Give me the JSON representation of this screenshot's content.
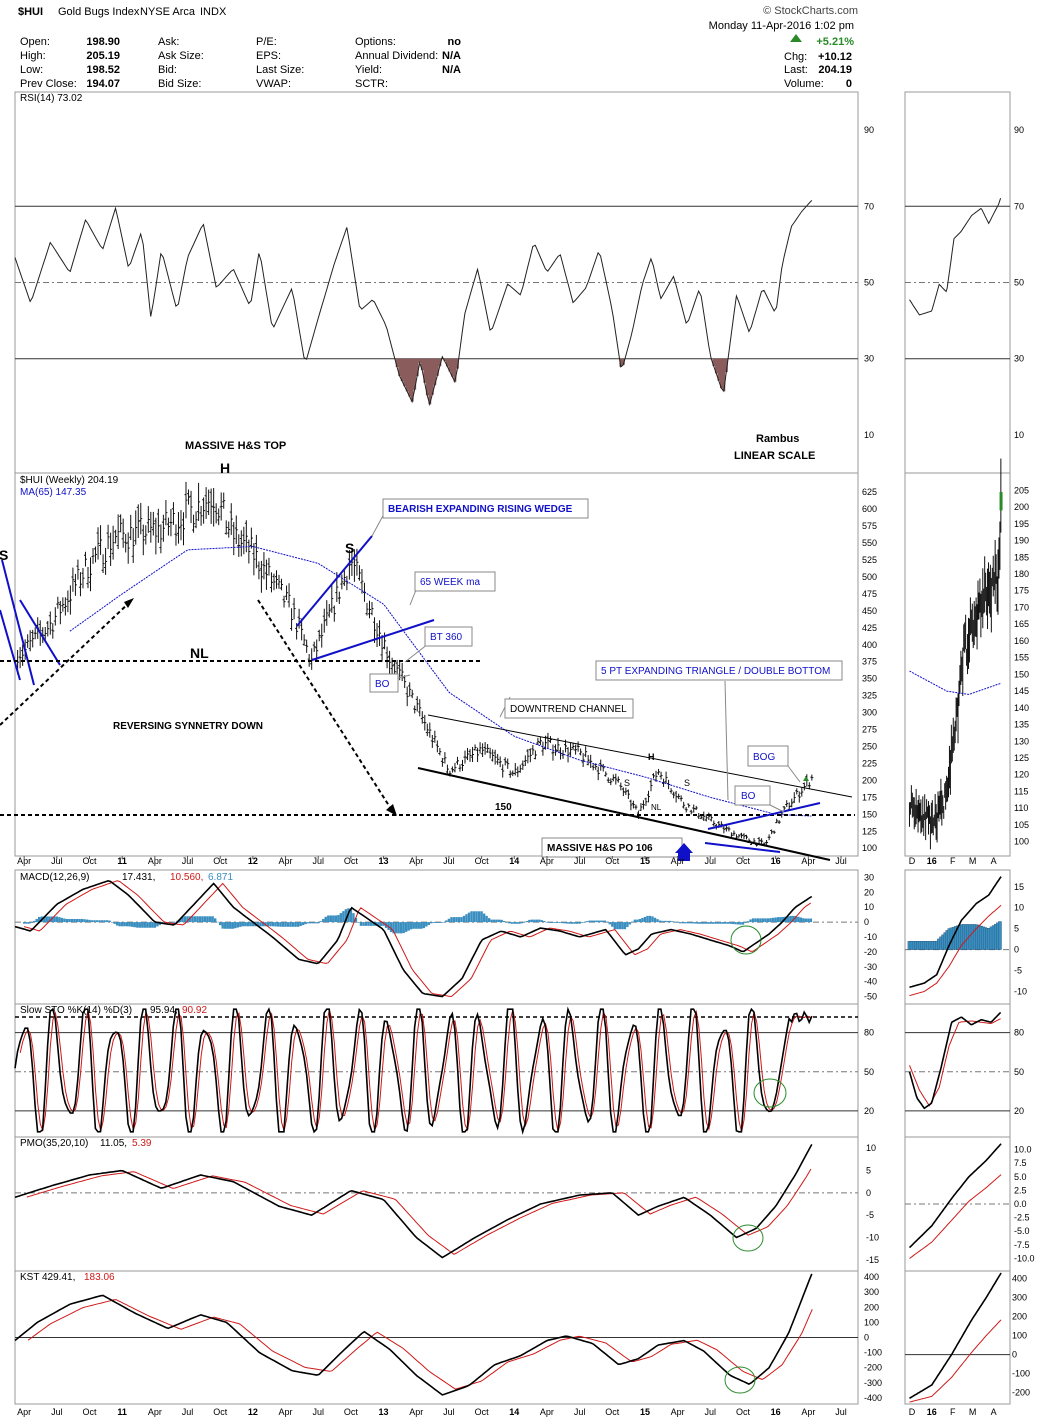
{
  "header": {
    "symbol": "$HUI",
    "name": "Gold Bugs Index",
    "exchange": "NYSE Arca",
    "type": "INDX",
    "watermark": "© StockCharts.com",
    "datetime": "Monday   11-Apr-2016   1:02 pm",
    "change_pct": "+5.21%",
    "chg_label": "Chg:",
    "chg_value": "+10.12",
    "last_label": "Last:",
    "last_value": "204.19",
    "volume_label": "Volume:",
    "volume_value": "0",
    "stats": [
      {
        "label": "Open:",
        "value": "198.90"
      },
      {
        "label": "High:",
        "value": "205.19"
      },
      {
        "label": "Low:",
        "value": "198.52"
      },
      {
        "label": "Prev Close:",
        "value": "194.07"
      }
    ],
    "col2": [
      "Ask:",
      "Ask Size:",
      "Bid:",
      "Bid Size:"
    ],
    "col3": [
      "P/E:",
      "EPS:",
      "Last Size:",
      "VWAP:"
    ],
    "col4": [
      {
        "label": "Options:",
        "value": "no"
      },
      {
        "label": "Annual Dividend:",
        "value": "N/A"
      },
      {
        "label": "Yield:",
        "value": "N/A"
      },
      {
        "label": "SCTR:",
        "value": ""
      }
    ]
  },
  "panels": {
    "rsi": {
      "label": "RSI(14) 73.02",
      "ticks": [
        "90",
        "70",
        "50",
        "30",
        "10"
      ]
    },
    "price": {
      "label": "$HUI (Weekly) 204.19",
      "ma_label": "MA(65) 147.35",
      "ticks": [
        "625",
        "600",
        "575",
        "550",
        "525",
        "500",
        "475",
        "450",
        "425",
        "400",
        "375",
        "350",
        "325",
        "300",
        "275",
        "250",
        "225",
        "200",
        "175",
        "150",
        "125",
        "100"
      ],
      "right_ticks": [
        "205",
        "200",
        "195",
        "190",
        "185",
        "180",
        "175",
        "170",
        "165",
        "160",
        "155",
        "150",
        "145",
        "140",
        "135",
        "130",
        "125",
        "120",
        "115",
        "110",
        "105",
        "100"
      ]
    },
    "macd": {
      "label": "MACD(12,26,9)",
      "v1": "17.431,",
      "v2": "10.560,",
      "v3": "6.871",
      "ticks": [
        "30",
        "20",
        "10",
        "0",
        "-10",
        "-20",
        "-30",
        "-40",
        "-50"
      ],
      "right_ticks": [
        "15",
        "10",
        "5",
        "0",
        "-5",
        "-10"
      ]
    },
    "sto": {
      "label": "Slow STO %K(14) %D(3)",
      "v1": "95.94,",
      "v2": "90.92",
      "ticks": [
        "80",
        "50",
        "20"
      ]
    },
    "pmo": {
      "label": "PMO(35,20,10)",
      "v1": "11.05,",
      "v2": "5.39",
      "ticks": [
        "10",
        "5",
        "0",
        "-5",
        "-10",
        "-15"
      ],
      "right_ticks": [
        "10.0",
        "7.5",
        "5.0",
        "2.5",
        "0.0",
        "-2.5",
        "-5.0",
        "-7.5",
        "-10.0"
      ]
    },
    "kst": {
      "label": "KST",
      "v1": "429.41,",
      "v2": "183.06",
      "ticks": [
        "400",
        "300",
        "200",
        "100",
        "0",
        "-100",
        "-200",
        "-300",
        "-400"
      ],
      "right_ticks": [
        "400",
        "300",
        "200",
        "100",
        "0",
        "-100",
        "-200"
      ]
    }
  },
  "x_axis": {
    "labels": [
      "Apr",
      "Jul",
      "Oct",
      "11",
      "Apr",
      "Jul",
      "Oct",
      "12",
      "Apr",
      "Jul",
      "Oct",
      "13",
      "Apr",
      "Jul",
      "Oct",
      "14",
      "Apr",
      "Jul",
      "Oct",
      "15",
      "Apr",
      "Jul",
      "Oct",
      "16",
      "Apr",
      "Jul"
    ],
    "right_labels": [
      "D",
      "16",
      "F",
      "M",
      "A"
    ]
  },
  "annotations": {
    "massive_top": "MASSIVE H&S TOP",
    "rambus": "Rambus",
    "linear": "LINEAR SCALE",
    "h": "H",
    "s_left": "S",
    "s_right": "S",
    "nl": "NL",
    "wedge": "BEARISH EXPANDING RISING WEDGE",
    "ma65": "65 WEEK ma",
    "bt360": "BT 360",
    "bo1": "BO",
    "reversing": "REVERSING SYNNETRY DOWN",
    "downtrend": "DOWNTREND CHANNEL",
    "triangle": "5 PT EXPANDING TRIANGLE / DOUBLE BOTTOM",
    "bog": "BOG",
    "bo2": "BO",
    "l150": "150",
    "po106": "MASSIVE H&S PO 106",
    "mh": "H",
    "ms1": "S",
    "ms2": "S",
    "mnl": "NL"
  },
  "colors": {
    "up": "#2a8a2a",
    "blue": "#1010c8",
    "hist": "#3a8fc0",
    "red": "#d01818",
    "rsi_fill": "#8a5c5c"
  },
  "chart_data": {
    "type": "line",
    "title": "$HUI Gold Bugs Index (Weekly)",
    "xlabel": "",
    "ylabel": "",
    "x_range": [
      "2010-03",
      "2016-07"
    ],
    "ylim": [
      90,
      640
    ],
    "series": [
      {
        "name": "$HUI (Weekly)",
        "points": [
          [
            2010.25,
            390
          ],
          [
            2010.45,
            430
          ],
          [
            2010.75,
            520
          ],
          [
            2010.95,
            560
          ],
          [
            2011.3,
            570
          ],
          [
            2011.7,
            620
          ],
          [
            2011.85,
            560
          ],
          [
            2012.0,
            535
          ],
          [
            2012.3,
            450
          ],
          [
            2012.45,
            375
          ],
          [
            2012.75,
            525
          ],
          [
            2012.95,
            430
          ],
          [
            2013.05,
            380
          ],
          [
            2013.3,
            290
          ],
          [
            2013.5,
            215
          ],
          [
            2013.75,
            245
          ],
          [
            2014.0,
            210
          ],
          [
            2014.2,
            255
          ],
          [
            2014.5,
            240
          ],
          [
            2014.8,
            195
          ],
          [
            2014.95,
            150
          ],
          [
            2015.1,
            215
          ],
          [
            2015.3,
            165
          ],
          [
            2015.55,
            135
          ],
          [
            2015.75,
            115
          ],
          [
            2015.92,
            105
          ],
          [
            2016.08,
            160
          ],
          [
            2016.28,
            204.19
          ]
        ]
      },
      {
        "name": "MA(65)",
        "points": [
          [
            2010.6,
            420
          ],
          [
            2011.0,
            475
          ],
          [
            2011.5,
            540
          ],
          [
            2012.0,
            545
          ],
          [
            2012.5,
            520
          ],
          [
            2013.0,
            460
          ],
          [
            2013.5,
            330
          ],
          [
            2014.0,
            265
          ],
          [
            2014.5,
            230
          ],
          [
            2015.0,
            205
          ],
          [
            2015.5,
            175
          ],
          [
            2016.0,
            150
          ],
          [
            2016.28,
            147.35
          ]
        ]
      }
    ],
    "indicators": {
      "rsi14": 73.02,
      "macd": [
        17.431,
        10.56,
        6.871
      ],
      "slow_sto": [
        95.94,
        90.92
      ],
      "pmo": [
        11.05,
        5.39
      ],
      "kst": [
        429.41,
        183.06
      ]
    }
  }
}
